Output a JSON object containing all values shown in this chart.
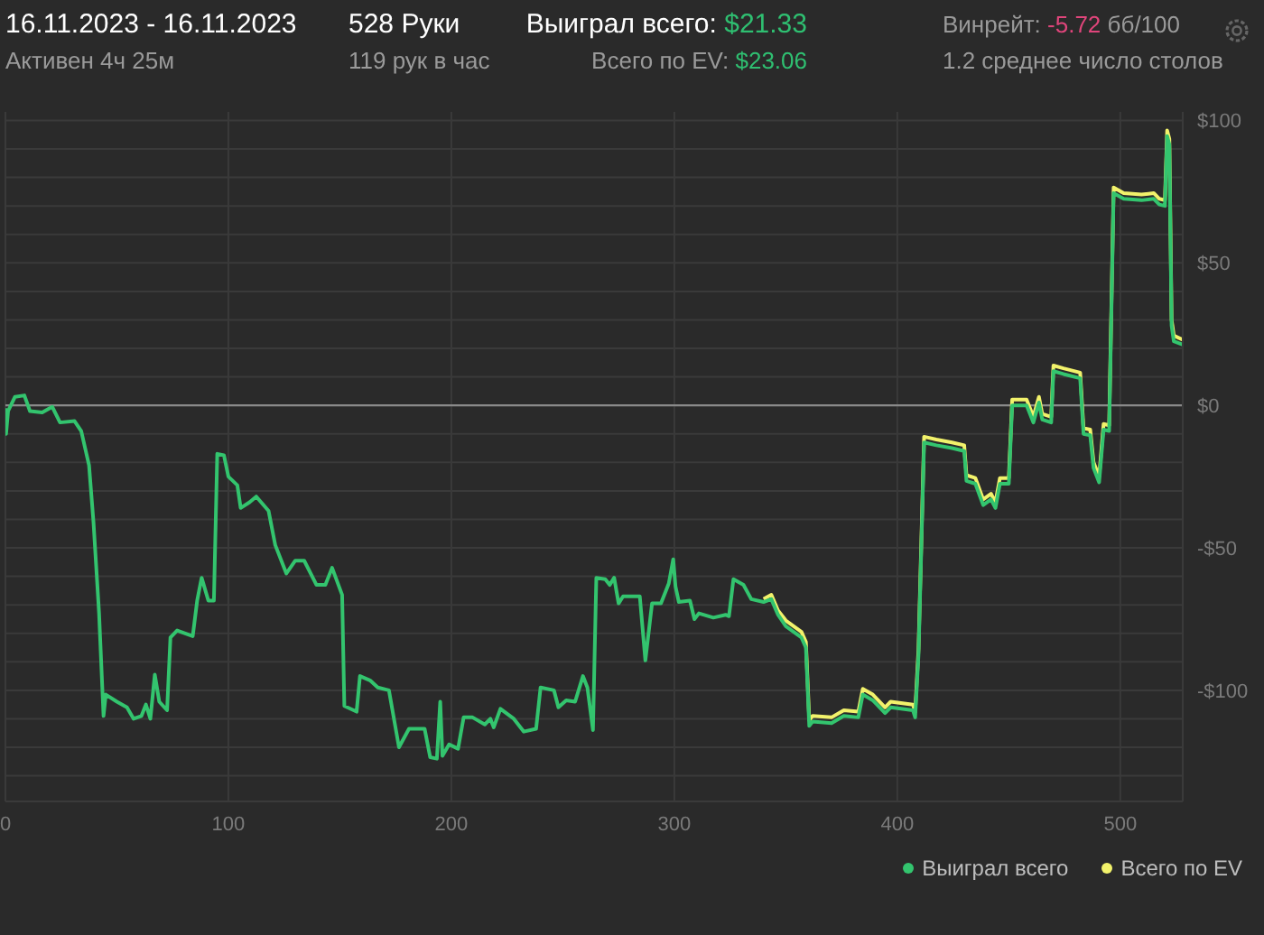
{
  "chart_data": {
    "type": "line",
    "annotations": [
      "16.11.2023 - 16.11.2023",
      "Активен 4ч 25м",
      "528 Руки",
      "119 рук в час",
      "Выиграл всего:",
      "$21.33",
      "Всего по EV:",
      "$23.06",
      "Винрейт:",
      "-5.72",
      "бб/100",
      "1.2 среднее число столов"
    ],
    "x": [
      0,
      0.3,
      1.2,
      4.3,
      8.5,
      11,
      16.5,
      21,
      24.5,
      31,
      34,
      37.5,
      39.5,
      42,
      44,
      45,
      50,
      54.5,
      57.5,
      61,
      63,
      65,
      67,
      69,
      72.5,
      74,
      77,
      84,
      86,
      88,
      91,
      93.5,
      95,
      98,
      100,
      104,
      105.5,
      109.5,
      112.5,
      118,
      121,
      126,
      130,
      134,
      139.5,
      143.5,
      146.5,
      151,
      152,
      157.5,
      159,
      163.5,
      167,
      172,
      176.5,
      181,
      188,
      190.5,
      193.5,
      195,
      196,
      199,
      203,
      205.5,
      209.5,
      215,
      217.5,
      219,
      222,
      228,
      232.5,
      238,
      240,
      246,
      248,
      251.5,
      255.5,
      259,
      261,
      263.5,
      265,
      269,
      271,
      273,
      275,
      277,
      284.5,
      287,
      290,
      294,
      296,
      297.5,
      299.5,
      300.5,
      302,
      307,
      309,
      311,
      317.5,
      323,
      324.5,
      326.5,
      331,
      334.5,
      340,
      343.5,
      346.5,
      350,
      357,
      359,
      360.5,
      362,
      370.5,
      376,
      382.5,
      384.5,
      389,
      394.5,
      397,
      407,
      408,
      409.5,
      412,
      417.5,
      424.5,
      430,
      431,
      435,
      438.5,
      442,
      444,
      446,
      450,
      451.5,
      458,
      461,
      463.5,
      465,
      469,
      470,
      474.5,
      482,
      483.5,
      486.5,
      488,
      490.5,
      492.5,
      495,
      497,
      501.5,
      509.5,
      515,
      517.5,
      520,
      521,
      522,
      523,
      524,
      528
    ],
    "series": [
      {
        "name": "Выиграл всего",
        "color": "#33c46e",
        "values": [
          -1,
          -10,
          -2,
          3,
          3.5,
          -2,
          -2.5,
          -0.5,
          -6,
          -5.5,
          -9,
          -21,
          -41,
          -73,
          -109,
          -101.5,
          -104,
          -106,
          -110,
          -109,
          -105,
          -110,
          -94.5,
          -104,
          -107,
          -81.5,
          -79,
          -81,
          -68.5,
          -60.5,
          -68.5,
          -68.5,
          -17,
          -17.5,
          -25,
          -28,
          -36,
          -34,
          -32,
          -37,
          -49,
          -59,
          -54.5,
          -54.5,
          -63,
          -63,
          -57,
          -66.5,
          -105.5,
          -107.5,
          -95,
          -96.5,
          -99,
          -100,
          -120,
          -113.5,
          -113.5,
          -123.5,
          -124,
          -104,
          -123,
          -119,
          -120.5,
          -109.5,
          -109.5,
          -112,
          -110,
          -113,
          -106.5,
          -110,
          -114.5,
          -113.5,
          -99,
          -100,
          -106,
          -103.5,
          -104,
          -95,
          -99,
          -114,
          -60.5,
          -61,
          -63,
          -60.5,
          -69.5,
          -67,
          -67,
          -89.5,
          -69.5,
          -69.5,
          -65.5,
          -62.5,
          -54,
          -63.5,
          -69,
          -68.5,
          -75,
          -73,
          -74.5,
          -73.5,
          -74,
          -61,
          -63,
          -68,
          -69,
          -68,
          -73.5,
          -77.5,
          -81.5,
          -85,
          -112.5,
          -111,
          -111.5,
          -109,
          -109.5,
          -101.5,
          -103.5,
          -108,
          -106,
          -107,
          -109.5,
          -87.5,
          -13,
          -14,
          -15,
          -16,
          -26.5,
          -27.5,
          -35,
          -33,
          -36,
          -27.5,
          -27.5,
          0,
          0,
          -6,
          1,
          -5,
          -6,
          12,
          11,
          9.5,
          -10,
          -10.5,
          -22,
          -27,
          -8.5,
          -9,
          74.5,
          72.5,
          72,
          72.5,
          70.5,
          70,
          94.5,
          91.5,
          28,
          22.5,
          21.33
        ]
      },
      {
        "name": "Всего по EV",
        "color": "#f2f26b",
        "values": [
          null,
          null,
          null,
          null,
          null,
          null,
          null,
          null,
          null,
          null,
          null,
          null,
          null,
          null,
          null,
          null,
          null,
          null,
          null,
          null,
          null,
          null,
          null,
          null,
          null,
          null,
          null,
          null,
          null,
          null,
          null,
          null,
          null,
          null,
          null,
          null,
          null,
          null,
          null,
          null,
          null,
          null,
          null,
          null,
          null,
          null,
          null,
          null,
          null,
          null,
          null,
          null,
          null,
          null,
          null,
          null,
          null,
          null,
          null,
          null,
          null,
          null,
          null,
          null,
          null,
          null,
          null,
          null,
          null,
          null,
          null,
          null,
          null,
          null,
          null,
          null,
          null,
          null,
          null,
          null,
          null,
          null,
          null,
          null,
          null,
          null,
          null,
          null,
          null,
          null,
          null,
          null,
          null,
          null,
          null,
          null,
          null,
          null,
          null,
          null,
          null,
          null,
          null,
          null,
          -68,
          -66.5,
          -72,
          -75.5,
          -79.5,
          -83,
          -110.5,
          -109,
          -109.5,
          -107,
          -107.5,
          -99.5,
          -101.5,
          -106,
          -104,
          -105,
          -107.5,
          -85.5,
          -11,
          -12,
          -13,
          -14,
          -24.5,
          -25.5,
          -33,
          -31,
          -34,
          -25.5,
          -25.5,
          2,
          2,
          -4,
          3,
          -3,
          -4,
          14,
          13,
          11.5,
          -8,
          -8.5,
          -20,
          -25,
          -6.5,
          -7,
          76.5,
          74.5,
          74,
          74.5,
          72.5,
          72,
          96.5,
          93.5,
          30,
          24.5,
          23.06
        ]
      }
    ],
    "xlim": [
      0,
      528
    ],
    "xticks": [
      0,
      100,
      200,
      300,
      400,
      500
    ],
    "ylim": [
      -139,
      103
    ],
    "yticks": [
      {
        "value": -130,
        "label": null
      },
      {
        "value": -120,
        "label": null
      },
      {
        "value": -110,
        "label": null
      },
      {
        "value": -100,
        "label": "-$100"
      },
      {
        "value": -90,
        "label": null
      },
      {
        "value": -80,
        "label": null
      },
      {
        "value": -70,
        "label": null
      },
      {
        "value": -60,
        "label": null
      },
      {
        "value": -50,
        "label": "-$50"
      },
      {
        "value": -40,
        "label": null
      },
      {
        "value": -30,
        "label": null
      },
      {
        "value": -20,
        "label": null
      },
      {
        "value": -10,
        "label": null
      },
      {
        "value": 0,
        "label": "$0"
      },
      {
        "value": 10,
        "label": null
      },
      {
        "value": 20,
        "label": null
      },
      {
        "value": 30,
        "label": null
      },
      {
        "value": 40,
        "label": null
      },
      {
        "value": 50,
        "label": "$50"
      },
      {
        "value": 60,
        "label": null
      },
      {
        "value": 70,
        "label": null
      },
      {
        "value": 80,
        "label": null
      },
      {
        "value": 90,
        "label": null
      },
      {
        "value": 100,
        "label": "$100"
      }
    ],
    "ref_lines": [
      {
        "axis": "y",
        "value": 0,
        "color": "#8a8a8a"
      }
    ],
    "grid": true,
    "legend": "bottom right"
  }
}
